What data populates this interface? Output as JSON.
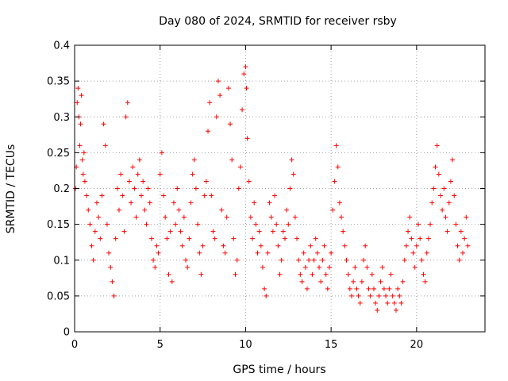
{
  "chart_data": {
    "type": "scatter",
    "title": "Day 080 of 2024, SRMTID for receiver rsby",
    "xlabel": "GPS time / hours",
    "ylabel": "SRMTID / TECUs",
    "xlim": [
      0,
      24
    ],
    "ylim": [
      0,
      0.4
    ],
    "grid": true,
    "marker": "+",
    "marker_color": "#ff0000",
    "xticks": [
      0,
      5,
      10,
      15,
      20
    ],
    "xtick_labels": [
      "0",
      "5",
      "10",
      "15",
      "20"
    ],
    "yticks": [
      0,
      0.05,
      0.1,
      0.15,
      0.2,
      0.25,
      0.3,
      0.35,
      0.4
    ],
    "ytick_labels": [
      "0",
      "0.05",
      "0.1",
      "0.15",
      "0.2",
      "0.25",
      "0.3",
      "0.35",
      "0.4"
    ],
    "series": [
      {
        "name": "SRMTID",
        "points": [
          [
            0.05,
            0.2
          ],
          [
            0.1,
            0.23
          ],
          [
            0.15,
            0.32
          ],
          [
            0.2,
            0.34
          ],
          [
            0.25,
            0.3
          ],
          [
            0.3,
            0.26
          ],
          [
            0.35,
            0.29
          ],
          [
            0.4,
            0.33
          ],
          [
            0.45,
            0.24
          ],
          [
            0.5,
            0.22
          ],
          [
            0.55,
            0.25
          ],
          [
            0.6,
            0.21
          ],
          [
            0.7,
            0.19
          ],
          [
            0.8,
            0.17
          ],
          [
            0.9,
            0.15
          ],
          [
            1.0,
            0.12
          ],
          [
            1.1,
            0.1
          ],
          [
            1.2,
            0.14
          ],
          [
            1.3,
            0.18
          ],
          [
            1.4,
            0.16
          ],
          [
            1.5,
            0.13
          ],
          [
            1.6,
            0.19
          ],
          [
            1.7,
            0.29
          ],
          [
            1.8,
            0.26
          ],
          [
            1.9,
            0.15
          ],
          [
            2.0,
            0.11
          ],
          [
            2.1,
            0.09
          ],
          [
            2.2,
            0.07
          ],
          [
            2.3,
            0.05
          ],
          [
            2.4,
            0.13
          ],
          [
            2.5,
            0.2
          ],
          [
            2.6,
            0.17
          ],
          [
            2.7,
            0.22
          ],
          [
            2.8,
            0.19
          ],
          [
            2.9,
            0.14
          ],
          [
            3.0,
            0.3
          ],
          [
            3.1,
            0.32
          ],
          [
            3.2,
            0.21
          ],
          [
            3.3,
            0.18
          ],
          [
            3.4,
            0.23
          ],
          [
            3.5,
            0.2
          ],
          [
            3.6,
            0.16
          ],
          [
            3.7,
            0.22
          ],
          [
            3.8,
            0.24
          ],
          [
            3.9,
            0.19
          ],
          [
            4.0,
            0.21
          ],
          [
            4.1,
            0.17
          ],
          [
            4.2,
            0.15
          ],
          [
            4.3,
            0.2
          ],
          [
            4.4,
            0.18
          ],
          [
            4.5,
            0.13
          ],
          [
            4.6,
            0.1
          ],
          [
            4.7,
            0.09
          ],
          [
            4.8,
            0.12
          ],
          [
            4.9,
            0.11
          ],
          [
            5.0,
            0.22
          ],
          [
            5.1,
            0.25
          ],
          [
            5.2,
            0.19
          ],
          [
            5.3,
            0.16
          ],
          [
            5.4,
            0.13
          ],
          [
            5.5,
            0.08
          ],
          [
            5.6,
            0.14
          ],
          [
            5.7,
            0.07
          ],
          [
            5.8,
            0.18
          ],
          [
            5.9,
            0.15
          ],
          [
            6.0,
            0.2
          ],
          [
            6.1,
            0.17
          ],
          [
            6.2,
            0.14
          ],
          [
            6.3,
            0.12
          ],
          [
            6.4,
            0.16
          ],
          [
            6.5,
            0.1
          ],
          [
            6.6,
            0.09
          ],
          [
            6.7,
            0.13
          ],
          [
            6.8,
            0.18
          ],
          [
            6.9,
            0.22
          ],
          [
            7.0,
            0.24
          ],
          [
            7.1,
            0.2
          ],
          [
            7.2,
            0.15
          ],
          [
            7.3,
            0.11
          ],
          [
            7.4,
            0.08
          ],
          [
            7.5,
            0.12
          ],
          [
            7.6,
            0.19
          ],
          [
            7.7,
            0.21
          ],
          [
            7.8,
            0.28
          ],
          [
            7.9,
            0.32
          ],
          [
            8.0,
            0.19
          ],
          [
            8.1,
            0.14
          ],
          [
            8.2,
            0.13
          ],
          [
            8.3,
            0.3
          ],
          [
            8.4,
            0.35
          ],
          [
            8.5,
            0.33
          ],
          [
            8.6,
            0.17
          ],
          [
            8.7,
            0.12
          ],
          [
            8.8,
            0.11
          ],
          [
            8.9,
            0.16
          ],
          [
            9.0,
            0.34
          ],
          [
            9.1,
            0.29
          ],
          [
            9.2,
            0.24
          ],
          [
            9.3,
            0.13
          ],
          [
            9.4,
            0.08
          ],
          [
            9.5,
            0.1
          ],
          [
            9.6,
            0.2
          ],
          [
            9.7,
            0.23
          ],
          [
            9.8,
            0.31
          ],
          [
            9.9,
            0.36
          ],
          [
            10.0,
            0.37
          ],
          [
            10.05,
            0.34
          ],
          [
            10.1,
            0.27
          ],
          [
            10.2,
            0.21
          ],
          [
            10.3,
            0.16
          ],
          [
            10.4,
            0.13
          ],
          [
            10.5,
            0.18
          ],
          [
            10.6,
            0.15
          ],
          [
            10.7,
            0.11
          ],
          [
            10.8,
            0.14
          ],
          [
            10.9,
            0.12
          ],
          [
            11.0,
            0.09
          ],
          [
            11.1,
            0.06
          ],
          [
            11.2,
            0.05
          ],
          [
            11.3,
            0.11
          ],
          [
            11.4,
            0.18
          ],
          [
            11.5,
            0.16
          ],
          [
            11.6,
            0.14
          ],
          [
            11.7,
            0.19
          ],
          [
            11.8,
            0.15
          ],
          [
            11.9,
            0.12
          ],
          [
            12.0,
            0.08
          ],
          [
            12.1,
            0.1
          ],
          [
            12.2,
            0.14
          ],
          [
            12.3,
            0.13
          ],
          [
            12.4,
            0.17
          ],
          [
            12.5,
            0.15
          ],
          [
            12.6,
            0.2
          ],
          [
            12.7,
            0.24
          ],
          [
            12.8,
            0.22
          ],
          [
            12.9,
            0.16
          ],
          [
            13.0,
            0.13
          ],
          [
            13.1,
            0.1
          ],
          [
            13.2,
            0.08
          ],
          [
            13.3,
            0.07
          ],
          [
            13.4,
            0.11
          ],
          [
            13.5,
            0.09
          ],
          [
            13.6,
            0.06
          ],
          [
            13.7,
            0.1
          ],
          [
            13.8,
            0.12
          ],
          [
            13.9,
            0.08
          ],
          [
            14.0,
            0.1
          ],
          [
            14.1,
            0.13
          ],
          [
            14.2,
            0.11
          ],
          [
            14.3,
            0.09
          ],
          [
            14.4,
            0.07
          ],
          [
            14.5,
            0.1
          ],
          [
            14.6,
            0.12
          ],
          [
            14.7,
            0.08
          ],
          [
            14.8,
            0.06
          ],
          [
            14.9,
            0.09
          ],
          [
            15.0,
            0.11
          ],
          [
            15.1,
            0.17
          ],
          [
            15.2,
            0.21
          ],
          [
            15.3,
            0.26
          ],
          [
            15.4,
            0.23
          ],
          [
            15.5,
            0.18
          ],
          [
            15.6,
            0.16
          ],
          [
            15.7,
            0.14
          ],
          [
            15.8,
            0.12
          ],
          [
            15.9,
            0.1
          ],
          [
            16.0,
            0.08
          ],
          [
            16.1,
            0.06
          ],
          [
            16.2,
            0.05
          ],
          [
            16.3,
            0.07
          ],
          [
            16.4,
            0.09
          ],
          [
            16.5,
            0.06
          ],
          [
            16.6,
            0.05
          ],
          [
            16.7,
            0.04
          ],
          [
            16.8,
            0.07
          ],
          [
            16.9,
            0.1
          ],
          [
            17.0,
            0.12
          ],
          [
            17.1,
            0.09
          ],
          [
            17.2,
            0.06
          ],
          [
            17.3,
            0.05
          ],
          [
            17.4,
            0.08
          ],
          [
            17.5,
            0.06
          ],
          [
            17.6,
            0.04
          ],
          [
            17.7,
            0.03
          ],
          [
            17.8,
            0.05
          ],
          [
            17.9,
            0.07
          ],
          [
            18.0,
            0.09
          ],
          [
            18.1,
            0.06
          ],
          [
            18.2,
            0.05
          ],
          [
            18.3,
            0.04
          ],
          [
            18.4,
            0.06
          ],
          [
            18.5,
            0.08
          ],
          [
            18.6,
            0.05
          ],
          [
            18.7,
            0.04
          ],
          [
            18.8,
            0.03
          ],
          [
            18.9,
            0.06
          ],
          [
            19.0,
            0.05
          ],
          [
            19.1,
            0.04
          ],
          [
            19.2,
            0.07
          ],
          [
            19.3,
            0.1
          ],
          [
            19.4,
            0.12
          ],
          [
            19.5,
            0.14
          ],
          [
            19.6,
            0.16
          ],
          [
            19.7,
            0.13
          ],
          [
            19.8,
            0.11
          ],
          [
            19.9,
            0.09
          ],
          [
            20.0,
            0.12
          ],
          [
            20.1,
            0.15
          ],
          [
            20.2,
            0.13
          ],
          [
            20.3,
            0.1
          ],
          [
            20.4,
            0.08
          ],
          [
            20.5,
            0.07
          ],
          [
            20.6,
            0.11
          ],
          [
            20.7,
            0.13
          ],
          [
            20.8,
            0.15
          ],
          [
            20.9,
            0.18
          ],
          [
            21.0,
            0.2
          ],
          [
            21.1,
            0.23
          ],
          [
            21.2,
            0.26
          ],
          [
            21.3,
            0.22
          ],
          [
            21.4,
            0.19
          ],
          [
            21.5,
            0.17
          ],
          [
            21.6,
            0.2
          ],
          [
            21.7,
            0.16
          ],
          [
            21.8,
            0.14
          ],
          [
            21.9,
            0.18
          ],
          [
            22.0,
            0.21
          ],
          [
            22.1,
            0.24
          ],
          [
            22.2,
            0.19
          ],
          [
            22.3,
            0.15
          ],
          [
            22.4,
            0.12
          ],
          [
            22.5,
            0.1
          ],
          [
            22.6,
            0.14
          ],
          [
            22.7,
            0.11
          ],
          [
            22.8,
            0.13
          ],
          [
            22.9,
            0.16
          ],
          [
            23.0,
            0.12
          ]
        ]
      }
    ]
  }
}
